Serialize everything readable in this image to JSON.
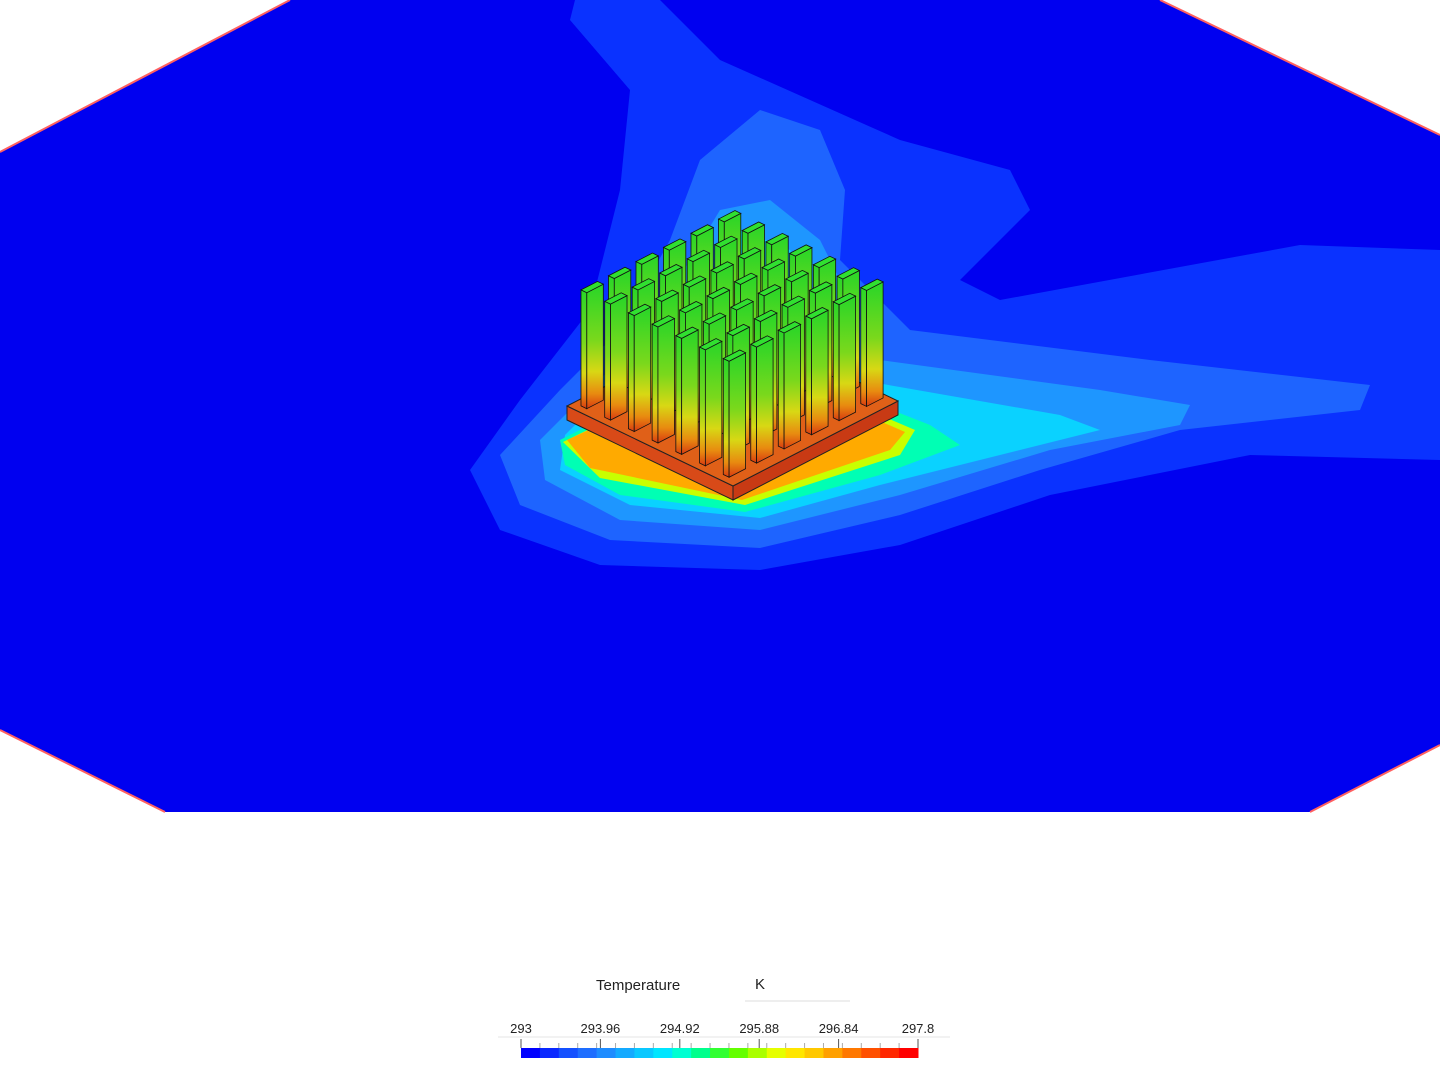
{
  "legend": {
    "title": "Temperature",
    "unit": "K",
    "range": [
      293,
      297.8
    ],
    "ticks": [
      293,
      293.96,
      294.92,
      295.88,
      296.84,
      297.8
    ],
    "colors": [
      "#0000ff",
      "#0a28ff",
      "#1450ff",
      "#1e6eff",
      "#1e8cff",
      "#14aaff",
      "#0ac8ff",
      "#00e6ff",
      "#00ffd2",
      "#00ff8c",
      "#32ff32",
      "#64ff00",
      "#aaff00",
      "#e6ff00",
      "#ffe600",
      "#ffc800",
      "#ffa000",
      "#ff7800",
      "#ff5000",
      "#ff2800",
      "#ff0000"
    ]
  }
}
